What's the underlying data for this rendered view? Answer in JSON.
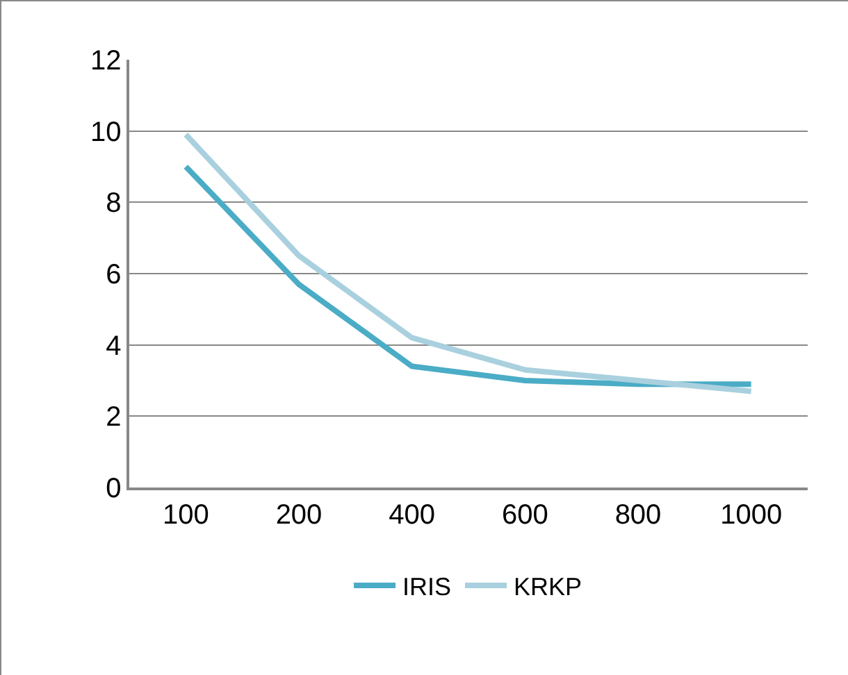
{
  "chart_data": {
    "type": "line",
    "categories": [
      "100",
      "200",
      "400",
      "600",
      "800",
      "1000"
    ],
    "series": [
      {
        "name": "IRIS",
        "color": "#4bacc6",
        "values": [
          9.0,
          5.7,
          3.4,
          3.0,
          2.9,
          2.9
        ]
      },
      {
        "name": "KRKP",
        "color": "#a9d0de",
        "values": [
          9.9,
          6.5,
          4.2,
          3.3,
          3.0,
          2.7
        ]
      }
    ],
    "ylim": [
      0,
      12
    ],
    "yticks": [
      0,
      2,
      4,
      6,
      8,
      10,
      12
    ],
    "grid": "y",
    "legend": "bottom",
    "marker": "none",
    "line_style": "solid"
  }
}
